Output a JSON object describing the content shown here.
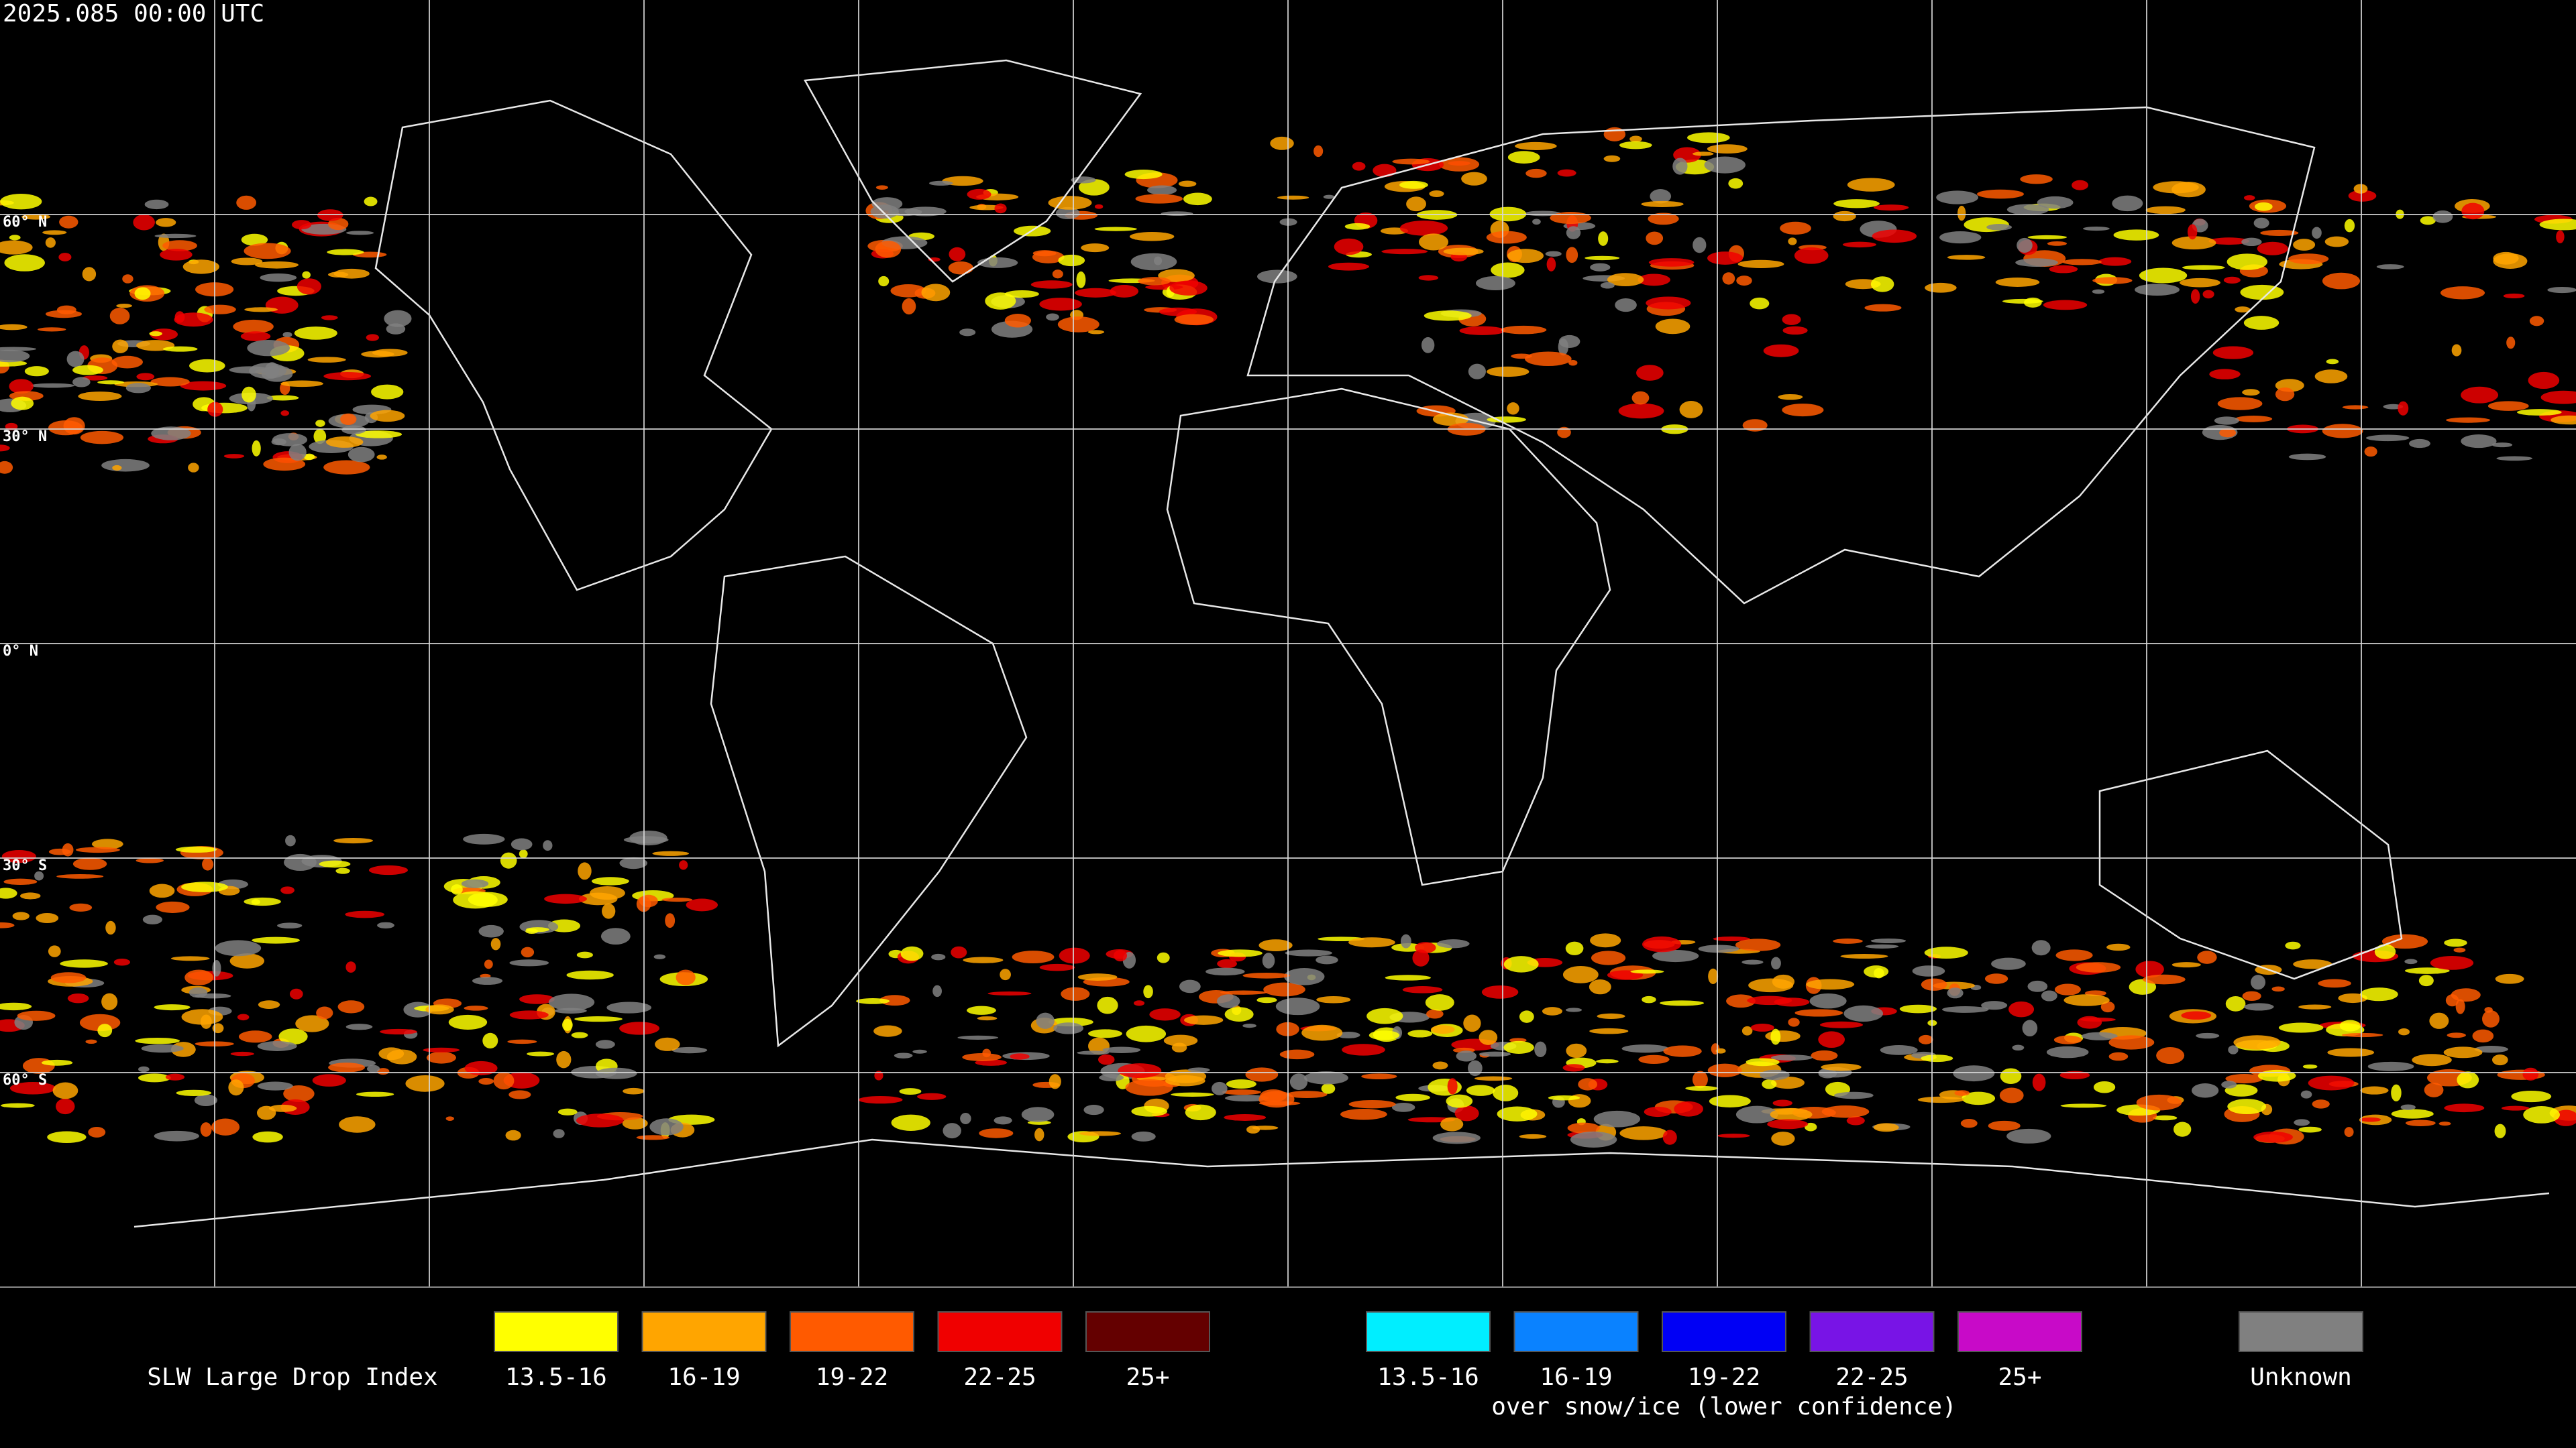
{
  "header": {
    "timestamp": "2025.085 00:00 UTC"
  },
  "map": {
    "lat_labels": [
      "60° N",
      "30° N",
      "0° N",
      "30° S",
      "60° S"
    ]
  },
  "legend": {
    "title": "SLW Large Drop Index",
    "items": [
      {
        "label": "13.5-16",
        "color": "#ffff00"
      },
      {
        "label": "16-19",
        "color": "#ffa500"
      },
      {
        "label": "19-22",
        "color": "#ff5a00"
      },
      {
        "label": "22-25",
        "color": "#f00000"
      },
      {
        "label": "25+",
        "color": "#640000"
      }
    ],
    "snow_items": [
      {
        "label": "13.5-16",
        "color": "#00eeff"
      },
      {
        "label": "16-19",
        "color": "#0a82ff"
      },
      {
        "label": "19-22",
        "color": "#0000f5"
      },
      {
        "label": "22-25",
        "color": "#7814e6"
      },
      {
        "label": "25+",
        "color": "#c80ac8"
      }
    ],
    "snow_note": "over snow/ice (lower confidence)",
    "unknown": {
      "label": "Unknown",
      "color": "#808080"
    }
  }
}
